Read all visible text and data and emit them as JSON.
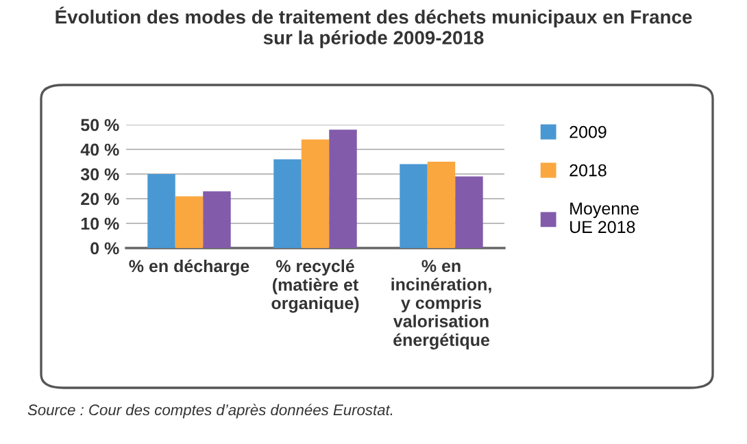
{
  "chart_data": {
    "type": "bar",
    "title": "Évolution des modes de traitement des déchets municipaux en France\nsur la période 2009-2018",
    "categories": [
      "% en décharge",
      "% recyclé\n(matière et\norganique)",
      "% en\nincinération,\ny compris\nvalorisation\nénergétique"
    ],
    "series": [
      {
        "name": "2009",
        "color": "#4a98d3",
        "values": [
          30,
          36,
          34
        ]
      },
      {
        "name": "2018",
        "color": "#fba73f",
        "values": [
          21,
          44,
          35
        ]
      },
      {
        "name": "Moyenne\nUE 2018",
        "color": "#835bab",
        "values": [
          23,
          48,
          29
        ]
      }
    ],
    "ylim": [
      0,
      50
    ],
    "yticks": [
      {
        "value": 0,
        "label": "0 %"
      },
      {
        "value": 10,
        "label": "10 %"
      },
      {
        "value": 20,
        "label": "20 %"
      },
      {
        "value": 30,
        "label": "30 %"
      },
      {
        "value": 40,
        "label": "40 %"
      },
      {
        "value": 50,
        "label": "50 %"
      }
    ],
    "grid": "y",
    "legend": "right",
    "annotations": [
      "Source : Cour des comptes d’après données Eurostat."
    ]
  }
}
